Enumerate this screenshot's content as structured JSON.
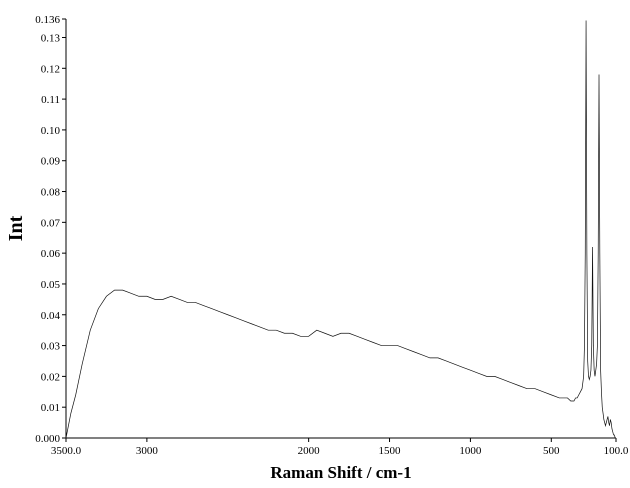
{
  "chart_data": {
    "type": "line",
    "xlabel": "Raman Shift / cm-1",
    "ylabel": "Int",
    "xlim": [
      3500.0,
      100.0
    ],
    "ylim": [
      0.0,
      0.136
    ],
    "x_reversed": true,
    "grid": false,
    "x_ticks": [
      {
        "value": 3500,
        "label": "3500.0"
      },
      {
        "value": 3000,
        "label": "3000"
      },
      {
        "value": 2000,
        "label": "2000"
      },
      {
        "value": 1500,
        "label": "1500"
      },
      {
        "value": 1000,
        "label": "1000"
      },
      {
        "value": 500,
        "label": "500"
      },
      {
        "value": 100,
        "label": "100.0"
      }
    ],
    "y_ticks": [
      {
        "value": 0.0,
        "label": "0.000"
      },
      {
        "value": 0.01,
        "label": "0.01"
      },
      {
        "value": 0.02,
        "label": "0.02"
      },
      {
        "value": 0.03,
        "label": "0.03"
      },
      {
        "value": 0.04,
        "label": "0.04"
      },
      {
        "value": 0.05,
        "label": "0.05"
      },
      {
        "value": 0.06,
        "label": "0.06"
      },
      {
        "value": 0.07,
        "label": "0.07"
      },
      {
        "value": 0.08,
        "label": "0.08"
      },
      {
        "value": 0.09,
        "label": "0.09"
      },
      {
        "value": 0.1,
        "label": "0.10"
      },
      {
        "value": 0.11,
        "label": "0.11"
      },
      {
        "value": 0.12,
        "label": "0.12"
      },
      {
        "value": 0.13,
        "label": "0.13"
      },
      {
        "value": 0.136,
        "label": "0.136"
      }
    ],
    "series": [
      {
        "x": [
          3500,
          3470,
          3440,
          3400,
          3350,
          3300,
          3250,
          3200,
          3150,
          3100,
          3050,
          3000,
          2950,
          2900,
          2850,
          2800,
          2750,
          2700,
          2650,
          2600,
          2550,
          2500,
          2450,
          2400,
          2350,
          2300,
          2250,
          2200,
          2150,
          2100,
          2050,
          2000,
          1950,
          1900,
          1850,
          1800,
          1750,
          1700,
          1650,
          1600,
          1550,
          1500,
          1450,
          1400,
          1350,
          1300,
          1250,
          1200,
          1150,
          1100,
          1050,
          1000,
          950,
          900,
          850,
          800,
          750,
          700,
          650,
          600,
          550,
          500,
          450,
          420,
          400,
          380,
          360,
          350,
          340,
          330,
          320,
          310,
          305,
          300,
          295,
          290,
          285,
          280,
          275,
          270,
          265,
          260,
          255,
          250,
          245,
          240,
          235,
          230,
          225,
          220,
          215,
          210,
          205,
          200,
          195,
          190,
          185,
          180,
          175,
          170,
          165,
          160,
          155,
          150,
          145,
          140,
          135,
          130,
          125,
          120,
          115,
          110,
          105,
          100
        ],
        "values": [
          0.0,
          0.008,
          0.014,
          0.024,
          0.035,
          0.042,
          0.046,
          0.048,
          0.048,
          0.047,
          0.046,
          0.046,
          0.045,
          0.045,
          0.046,
          0.045,
          0.044,
          0.044,
          0.043,
          0.042,
          0.041,
          0.04,
          0.039,
          0.038,
          0.037,
          0.036,
          0.035,
          0.035,
          0.034,
          0.034,
          0.033,
          0.033,
          0.035,
          0.034,
          0.033,
          0.034,
          0.034,
          0.033,
          0.032,
          0.031,
          0.03,
          0.03,
          0.03,
          0.029,
          0.028,
          0.027,
          0.026,
          0.026,
          0.025,
          0.024,
          0.023,
          0.022,
          0.021,
          0.02,
          0.02,
          0.019,
          0.018,
          0.017,
          0.016,
          0.016,
          0.015,
          0.014,
          0.013,
          0.013,
          0.013,
          0.012,
          0.012,
          0.013,
          0.013,
          0.014,
          0.015,
          0.016,
          0.018,
          0.02,
          0.03,
          0.06,
          0.1355,
          0.06,
          0.025,
          0.02,
          0.019,
          0.02,
          0.022,
          0.03,
          0.062,
          0.03,
          0.022,
          0.02,
          0.022,
          0.024,
          0.03,
          0.06,
          0.118,
          0.06,
          0.022,
          0.015,
          0.01,
          0.008,
          0.006,
          0.005,
          0.004,
          0.005,
          0.006,
          0.007,
          0.005,
          0.004,
          0.006,
          0.005,
          0.003,
          0.002,
          0.001,
          0.001,
          0.0,
          0.0
        ]
      }
    ]
  }
}
